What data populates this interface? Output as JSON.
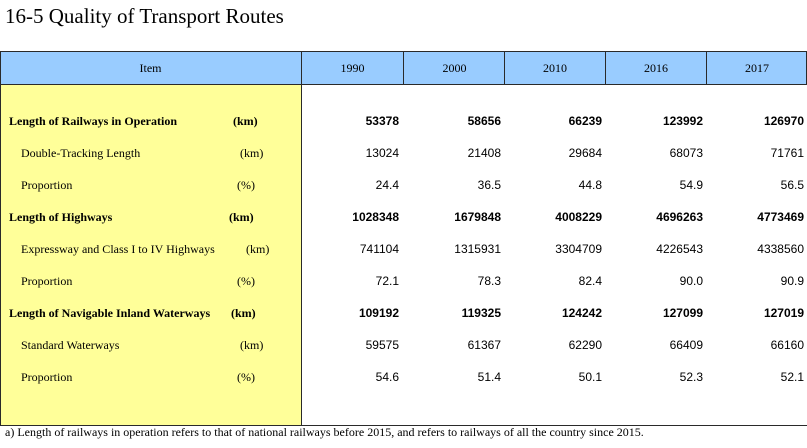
{
  "title": "16-5  Quality of Transport Routes",
  "table": {
    "header": {
      "item": "Item",
      "years": [
        "1990",
        "2000",
        "2010",
        "2016",
        "2017"
      ]
    },
    "rows": [
      {
        "label": "Length of Railways in Operation",
        "unit": "(km)",
        "bold": true,
        "values": [
          "53378",
          "58656",
          "66239",
          "123992",
          "126970"
        ]
      },
      {
        "label": "Double-Tracking Length",
        "unit": "(km)",
        "bold": false,
        "values": [
          "13024",
          "21408",
          "29684",
          "68073",
          "71761"
        ]
      },
      {
        "label": "Proportion",
        "unit": "(%)",
        "bold": false,
        "values": [
          "24.4",
          "36.5",
          "44.8",
          "54.9",
          "56.5"
        ]
      },
      {
        "label": "Length of Highways",
        "unit": "(km)",
        "bold": true,
        "values": [
          "1028348",
          "1679848",
          "4008229",
          "4696263",
          "4773469"
        ]
      },
      {
        "label": "Expressway and Class I to IV Highways",
        "unit": "(km)",
        "bold": false,
        "values": [
          "741104",
          "1315931",
          "3304709",
          "4226543",
          "4338560"
        ]
      },
      {
        "label": "Proportion",
        "unit": "(%)",
        "bold": false,
        "values": [
          "72.1",
          "78.3",
          "82.4",
          "90.0",
          "90.9"
        ]
      },
      {
        "label": "Length of Navigable Inland Waterways",
        "unit": "(km)",
        "bold": true,
        "values": [
          "109192",
          "119325",
          "124242",
          "127099",
          "127019"
        ]
      },
      {
        "label": "Standard Waterways",
        "unit": "(km)",
        "bold": false,
        "values": [
          "59575",
          "61367",
          "62290",
          "66409",
          "66160"
        ]
      },
      {
        "label": "Proportion",
        "unit": "(%)",
        "bold": false,
        "values": [
          "54.6",
          "51.4",
          "50.1",
          "52.3",
          "52.1"
        ]
      }
    ]
  },
  "note": "a) Length of railways in operation refers to that of national railways before 2015, and refers to railways of all the country since 2015.",
  "colors": {
    "header_bg": "#99ccff",
    "item_col_bg": "#ffff99"
  }
}
